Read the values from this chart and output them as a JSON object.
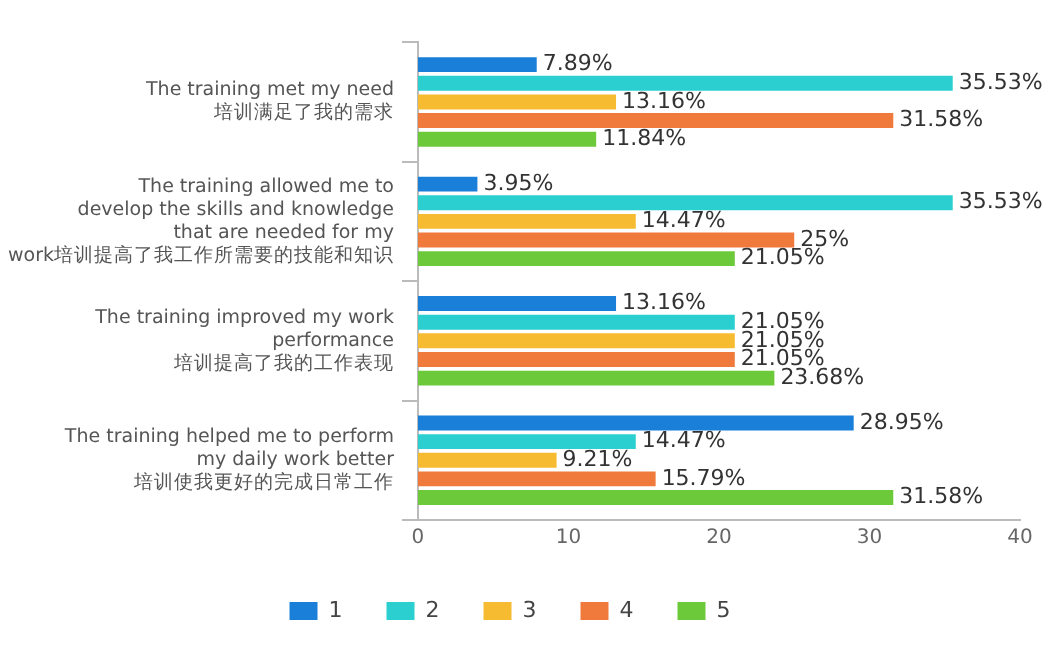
{
  "chart_data": {
    "type": "bar",
    "orientation": "horizontal",
    "categories": [
      "The training met my need\n培训满足了我的需求",
      "The training allowed me to\ndevelop the skills and knowledge\nthat are needed for my\nwork培训提高了我工作所需要的技能和知识",
      "The training improved my work\nperformance\n培训提高了我的工作表现",
      "The training helped me to perform\nmy daily work better\n培训使我更好的完成日常工作"
    ],
    "series": [
      {
        "name": "1",
        "color": "#1a7fd9",
        "values": [
          7.89,
          3.95,
          13.16,
          28.95
        ],
        "value_labels": [
          "7.89%",
          "3.95%",
          "13.16%",
          "28.95%"
        ]
      },
      {
        "name": "2",
        "color": "#2ccfcf",
        "values": [
          35.53,
          35.53,
          21.05,
          14.47
        ],
        "value_labels": [
          "35.53%",
          "35.53%",
          "21.05%",
          "14.47%"
        ]
      },
      {
        "name": "3",
        "color": "#f7bb32",
        "values": [
          13.16,
          14.47,
          21.05,
          9.21
        ],
        "value_labels": [
          "13.16%",
          "14.47%",
          "21.05%",
          "9.21%"
        ]
      },
      {
        "name": "4",
        "color": "#f07a3c",
        "values": [
          31.58,
          25,
          21.05,
          15.79
        ],
        "value_labels": [
          "31.58%",
          "25%",
          "21.05%",
          "15.79%"
        ]
      },
      {
        "name": "5",
        "color": "#6cc93a",
        "values": [
          11.84,
          21.05,
          23.68,
          31.58
        ],
        "value_labels": [
          "11.84%",
          "21.05%",
          "23.68%",
          "31.58%"
        ]
      }
    ],
    "xlim": [
      0,
      40
    ],
    "xticks": [
      0,
      10,
      20,
      30,
      40
    ],
    "grid": false,
    "legend": "bottom"
  }
}
